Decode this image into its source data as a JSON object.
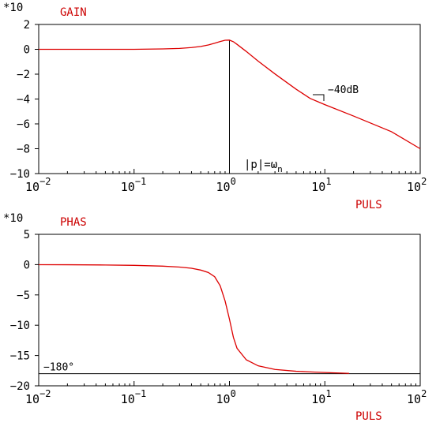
{
  "colors": {
    "curve": "#dd0000",
    "label": "#cc0000",
    "axis": "#000000"
  },
  "chart_data": [
    {
      "type": "line",
      "title": "GAIN",
      "scale_label": "*10",
      "xlabel": "PULS",
      "x_scale": "log",
      "xlim": [
        0.01,
        100
      ],
      "ylim": [
        -10,
        2
      ],
      "y_ticks": [
        "2",
        "0",
        "−2",
        "−4",
        "−6",
        "−8",
        "−10"
      ],
      "y_tick_values": [
        2,
        0,
        -2,
        -4,
        -6,
        -8,
        -10
      ],
      "x_ticks": [
        {
          "base": "10",
          "exp": "−2",
          "value": 0.01
        },
        {
          "base": "10",
          "exp": "−1",
          "value": 0.1
        },
        {
          "base": "10",
          "exp": "0",
          "value": 1
        },
        {
          "base": "10",
          "exp": "1",
          "value": 10
        },
        {
          "base": "10",
          "exp": "2",
          "value": 100
        }
      ],
      "series": [
        {
          "x": [
            0.01,
            0.02,
            0.05,
            0.1,
            0.2,
            0.3,
            0.4,
            0.5,
            0.6,
            0.7,
            0.8,
            0.9,
            1.0,
            1.1,
            1.2,
            1.5,
            2,
            3,
            5,
            7,
            10,
            20,
            50,
            100
          ],
          "values": [
            0.0,
            0.0,
            0.0,
            0.0,
            0.03,
            0.07,
            0.14,
            0.23,
            0.35,
            0.49,
            0.63,
            0.73,
            0.74,
            0.61,
            0.4,
            -0.17,
            -0.95,
            -1.98,
            -3.21,
            -3.95,
            -4.45,
            -5.37,
            -6.63,
            -8.0
          ]
        }
      ],
      "annotations": {
        "slope_label": "−40dB",
        "marker_label": "|p|=ω",
        "marker_subscript": "n",
        "marker_x": 1
      }
    },
    {
      "type": "line",
      "title": "PHAS",
      "scale_label": "*10",
      "xlabel": "PULS",
      "x_scale": "log",
      "xlim": [
        0.01,
        100
      ],
      "ylim": [
        -20,
        5
      ],
      "y_ticks": [
        "5",
        "0",
        "−5",
        "−10",
        "−15",
        "−20"
      ],
      "y_tick_values": [
        5,
        0,
        -5,
        -10,
        -15,
        -20
      ],
      "x_ticks": [
        {
          "base": "10",
          "exp": "−2",
          "value": 0.01
        },
        {
          "base": "10",
          "exp": "−1",
          "value": 0.1
        },
        {
          "base": "10",
          "exp": "0",
          "value": 1
        },
        {
          "base": "10",
          "exp": "1",
          "value": 10
        },
        {
          "base": "10",
          "exp": "2",
          "value": 100
        }
      ],
      "series": [
        {
          "x": [
            0.01,
            0.02,
            0.05,
            0.1,
            0.2,
            0.3,
            0.4,
            0.5,
            0.6,
            0.7,
            0.8,
            0.9,
            1.0,
            1.1,
            1.2,
            1.5,
            2,
            3,
            5,
            7,
            10,
            15,
            18
          ],
          "values": [
            -0.01,
            -0.02,
            -0.06,
            -0.12,
            -0.25,
            -0.4,
            -0.6,
            -0.9,
            -1.3,
            -2.0,
            -3.5,
            -6.0,
            -9.0,
            -12.0,
            -13.8,
            -15.7,
            -16.7,
            -17.3,
            -17.6,
            -17.7,
            -17.8,
            -17.9,
            -17.95
          ]
        }
      ],
      "reference_line": {
        "y": -18,
        "label": "−180°"
      }
    }
  ]
}
